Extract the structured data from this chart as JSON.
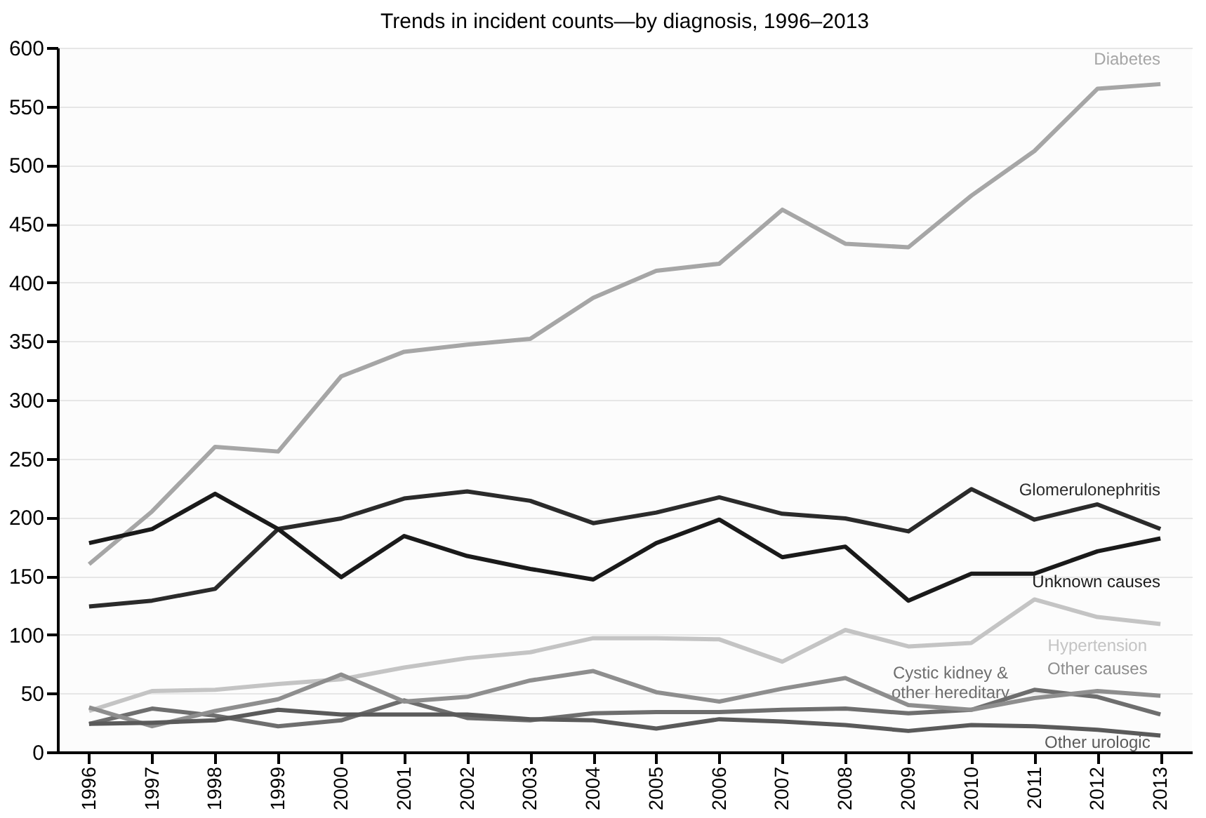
{
  "chart_data": {
    "type": "line",
    "title": "Trends in incident counts—by diagnosis, 1996–2013",
    "categories": [
      "1996",
      "1997",
      "1998",
      "1999",
      "2000",
      "2001",
      "2002",
      "2003",
      "2004",
      "2005",
      "2006",
      "2007",
      "2008",
      "2009",
      "2010",
      "2011",
      "2012",
      "2013"
    ],
    "series": [
      {
        "name": "Diabetes",
        "color": "#a6a6a6",
        "values": [
          160,
          205,
          260,
          256,
          320,
          341,
          347,
          352,
          387,
          410,
          416,
          462,
          433,
          430,
          474,
          512,
          565,
          569
        ]
      },
      {
        "name": "Glomerulonephritis",
        "color": "#2b2b2b",
        "values": [
          124,
          129,
          139,
          190,
          199,
          216,
          222,
          214,
          195,
          204,
          217,
          203,
          199,
          188,
          224,
          198,
          211,
          190
        ]
      },
      {
        "name": "Unknown causes",
        "color": "#1a1a1a",
        "values": [
          178,
          190,
          220,
          190,
          149,
          184,
          167,
          156,
          147,
          178,
          198,
          166,
          175,
          129,
          152,
          152,
          171,
          182
        ]
      },
      {
        "name": "Hypertension",
        "color": "#c4c4c4",
        "values": [
          35,
          52,
          53,
          58,
          62,
          72,
          80,
          85,
          97,
          97,
          96,
          77,
          104,
          90,
          93,
          130,
          115,
          109
        ]
      },
      {
        "name": "Cystic kidney & other hereditary",
        "color": "#6e6e6e",
        "values": [
          24,
          37,
          31,
          22,
          27,
          44,
          29,
          27,
          33,
          34,
          34,
          36,
          37,
          33,
          36,
          53,
          47,
          32
        ]
      },
      {
        "name": "Other causes",
        "color": "#8e8e8e",
        "values": [
          38,
          22,
          35,
          45,
          66,
          43,
          47,
          61,
          69,
          51,
          43,
          54,
          63,
          40,
          36,
          46,
          52,
          48
        ]
      },
      {
        "name": "Other urologic",
        "color": "#5a5a5a",
        "values": [
          24,
          25,
          27,
          36,
          32,
          32,
          32,
          28,
          27,
          20,
          28,
          26,
          23,
          18,
          23,
          22,
          19,
          14
        ]
      }
    ],
    "ylim": [
      0,
      600
    ],
    "yticks": [
      0,
      50,
      100,
      150,
      200,
      250,
      300,
      350,
      400,
      450,
      500,
      550,
      600
    ],
    "grid": "y",
    "legend": false,
    "line_style": "solid",
    "marker": "none"
  }
}
